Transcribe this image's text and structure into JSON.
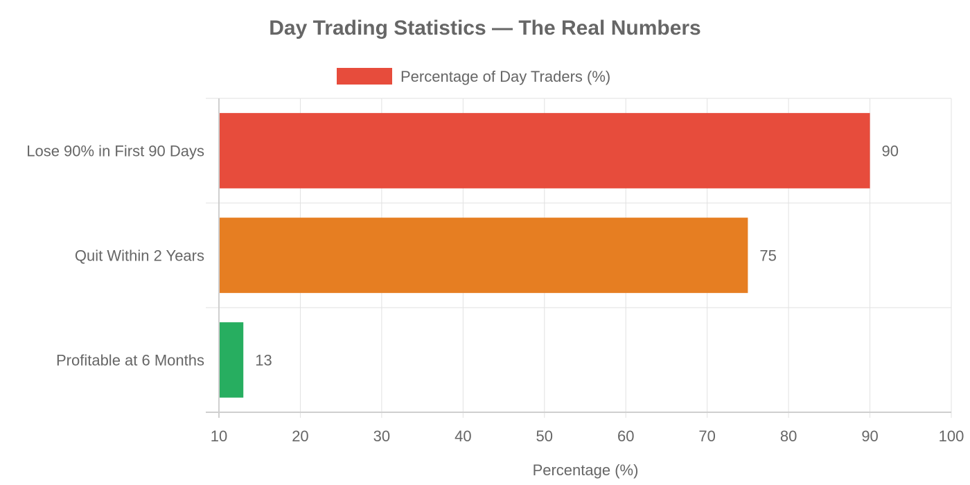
{
  "chart_data": {
    "type": "bar",
    "orientation": "horizontal",
    "title": "Day Trading Statistics — The Real Numbers",
    "categories": [
      "Lose 90% in First 90 Days",
      "Quit Within 2 Years",
      "Profitable at 6 Months"
    ],
    "series": [
      {
        "name": "Percentage of Day Traders (%)",
        "values": [
          90,
          75,
          13
        ],
        "colors": [
          "#e74c3c",
          "#e67e22",
          "#27ae60"
        ],
        "legend_color": "#e74c3c"
      }
    ],
    "data_labels": [
      "90",
      "75",
      "13"
    ],
    "xlabel": "Percentage (%)",
    "ylabel": "",
    "xlim": [
      10,
      100
    ],
    "xticks": [
      10,
      20,
      30,
      40,
      50,
      60,
      70,
      80,
      90,
      100
    ],
    "xtick_labels": [
      "10",
      "20",
      "30",
      "40",
      "50",
      "60",
      "70",
      "80",
      "90",
      "100"
    ],
    "grid": true,
    "legend_position": "top"
  }
}
